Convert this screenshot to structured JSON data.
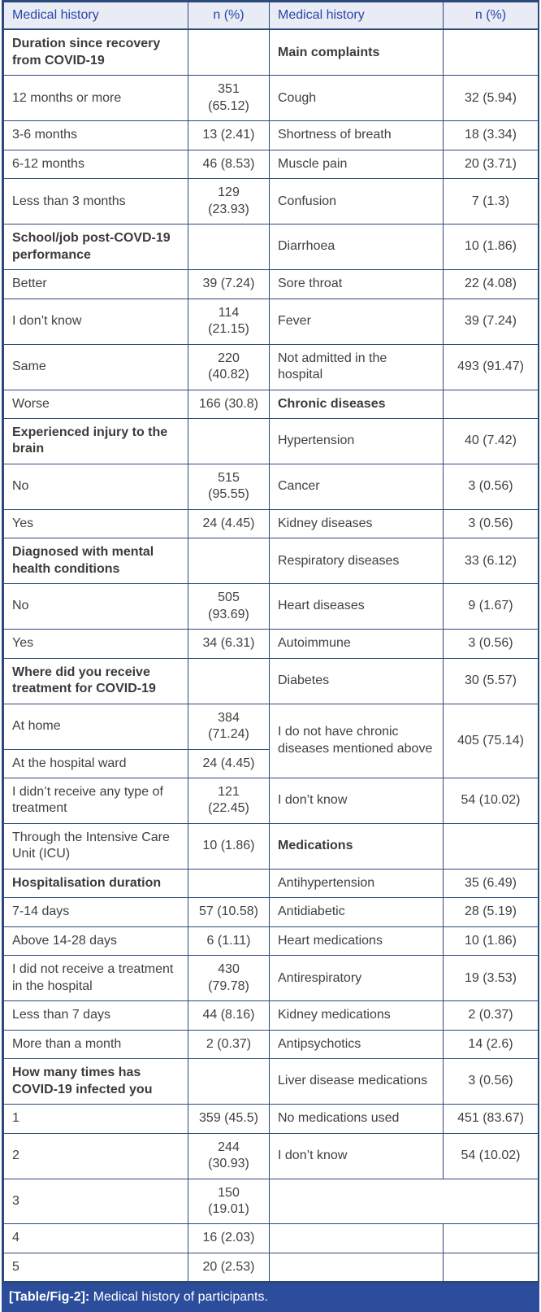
{
  "colors": {
    "border": "#2b4a7b",
    "header_bg": "#e9ebf5",
    "header_text": "#2847a8",
    "caption_bg": "#2b4d9c",
    "body_text": "#414042"
  },
  "caption": {
    "label": "[Table/Fig-2]:",
    "text": " Medical history of participants."
  },
  "table": {
    "columns": [
      {
        "label": "Medical history"
      },
      {
        "label": "n (%)"
      },
      {
        "label": "Medical history"
      },
      {
        "label": "n (%)"
      }
    ],
    "rows": [
      {
        "cells": [
          {
            "text": "Duration since recovery from COVID-19",
            "bold": true
          },
          {
            "text": ""
          },
          {
            "text": "Main complaints",
            "bold": true
          },
          {
            "text": ""
          }
        ]
      },
      {
        "cells": [
          {
            "text": "12 months or more"
          },
          {
            "text": "351 (65.12)"
          },
          {
            "text": "Cough"
          },
          {
            "text": "32 (5.94)"
          }
        ]
      },
      {
        "cells": [
          {
            "text": "3-6 months"
          },
          {
            "text": "13 (2.41)"
          },
          {
            "text": "Shortness of breath"
          },
          {
            "text": "18 (3.34)"
          }
        ]
      },
      {
        "cells": [
          {
            "text": "6-12 months"
          },
          {
            "text": "46 (8.53)"
          },
          {
            "text": "Muscle pain"
          },
          {
            "text": "20 (3.71)"
          }
        ]
      },
      {
        "cells": [
          {
            "text": "Less than 3 months"
          },
          {
            "text": "129 (23.93)"
          },
          {
            "text": "Confusion"
          },
          {
            "text": "7 (1.3)"
          }
        ]
      },
      {
        "cells": [
          {
            "text": "School/job post-COVD-19 performance",
            "bold": true
          },
          {
            "text": ""
          },
          {
            "text": "Diarrhoea"
          },
          {
            "text": "10 (1.86)"
          }
        ]
      },
      {
        "cells": [
          {
            "text": "Better"
          },
          {
            "text": "39 (7.24)"
          },
          {
            "text": "Sore throat"
          },
          {
            "text": "22 (4.08)"
          }
        ]
      },
      {
        "cells": [
          {
            "text": "I don’t know"
          },
          {
            "text": "114 (21.15)"
          },
          {
            "text": "Fever"
          },
          {
            "text": "39 (7.24)"
          }
        ]
      },
      {
        "cells": [
          {
            "text": "Same"
          },
          {
            "text": "220 (40.82)"
          },
          {
            "text": "Not admitted in the hospital"
          },
          {
            "text": "493 (91.47)"
          }
        ]
      },
      {
        "cells": [
          {
            "text": "Worse"
          },
          {
            "text": "166 (30.8)"
          },
          {
            "text": "Chronic diseases",
            "bold": true
          },
          {
            "text": ""
          }
        ]
      },
      {
        "cells": [
          {
            "text": "Experienced injury to the brain",
            "bold": true
          },
          {
            "text": ""
          },
          {
            "text": "Hypertension"
          },
          {
            "text": "40 (7.42)"
          }
        ]
      },
      {
        "cells": [
          {
            "text": "No"
          },
          {
            "text": "515 (95.55)"
          },
          {
            "text": "Cancer"
          },
          {
            "text": "3 (0.56)"
          }
        ]
      },
      {
        "cells": [
          {
            "text": "Yes"
          },
          {
            "text": "24 (4.45)"
          },
          {
            "text": "Kidney diseases"
          },
          {
            "text": "3 (0.56)"
          }
        ]
      },
      {
        "cells": [
          {
            "text": "Diagnosed with mental health conditions",
            "bold": true
          },
          {
            "text": ""
          },
          {
            "text": "Respiratory diseases"
          },
          {
            "text": "33 (6.12)"
          }
        ]
      },
      {
        "cells": [
          {
            "text": "No"
          },
          {
            "text": "505 (93.69)"
          },
          {
            "text": "Heart diseases"
          },
          {
            "text": "9 (1.67)"
          }
        ]
      },
      {
        "cells": [
          {
            "text": "Yes"
          },
          {
            "text": "34 (6.31)"
          },
          {
            "text": "Autoimmune"
          },
          {
            "text": "3 (0.56)"
          }
        ]
      },
      {
        "cells": [
          {
            "text": "Where did you receive treatment for COVID-19",
            "bold": true
          },
          {
            "text": ""
          },
          {
            "text": "Diabetes"
          },
          {
            "text": "30 (5.57)"
          }
        ]
      },
      {
        "cells": [
          {
            "text": "At home"
          },
          {
            "text": "384 (71.24)"
          },
          {
            "text": "I do not have chronic diseases mentioned above",
            "rowspan": 2
          },
          {
            "text": "405 (75.14)",
            "rowspan": 2
          }
        ]
      },
      {
        "cells": [
          {
            "text": "At the hospital ward"
          },
          {
            "text": "24 (4.45)"
          }
        ]
      },
      {
        "cells": [
          {
            "text": "I didn’t receive any type of treatment"
          },
          {
            "text": "121 (22.45)"
          },
          {
            "text": "I don’t know"
          },
          {
            "text": "54 (10.02)"
          }
        ]
      },
      {
        "cells": [
          {
            "text": "Through the Intensive Care Unit (ICU)"
          },
          {
            "text": "10 (1.86)"
          },
          {
            "text": "Medications",
            "bold": true
          },
          {
            "text": ""
          }
        ]
      },
      {
        "cells": [
          {
            "text": "Hospitalisation duration",
            "bold": true
          },
          {
            "text": ""
          },
          {
            "text": "Antihypertension"
          },
          {
            "text": "35 (6.49)"
          }
        ]
      },
      {
        "cells": [
          {
            "text": "7-14 days"
          },
          {
            "text": "57 (10.58)"
          },
          {
            "text": "Antidiabetic"
          },
          {
            "text": "28 (5.19)"
          }
        ]
      },
      {
        "cells": [
          {
            "text": "Above 14-28 days"
          },
          {
            "text": "6 (1.11)"
          },
          {
            "text": "Heart medications"
          },
          {
            "text": "10 (1.86)"
          }
        ]
      },
      {
        "cells": [
          {
            "text": "I did not receive a treatment in the hospital"
          },
          {
            "text": "430 (79.78)"
          },
          {
            "text": "Antirespiratory"
          },
          {
            "text": "19 (3.53)"
          }
        ]
      },
      {
        "cells": [
          {
            "text": "Less than 7 days"
          },
          {
            "text": "44 (8.16)"
          },
          {
            "text": "Kidney medications"
          },
          {
            "text": "2 (0.37)"
          }
        ]
      },
      {
        "cells": [
          {
            "text": "More than a month"
          },
          {
            "text": "2 (0.37)"
          },
          {
            "text": "Antipsychotics"
          },
          {
            "text": "14 (2.6)"
          }
        ]
      },
      {
        "cells": [
          {
            "text": "How many times has COVID-19 infected you",
            "bold": true
          },
          {
            "text": ""
          },
          {
            "text": "Liver disease medications"
          },
          {
            "text": "3 (0.56)"
          }
        ]
      },
      {
        "cells": [
          {
            "text": "1"
          },
          {
            "text": "359 (45.5)"
          },
          {
            "text": "No medications used"
          },
          {
            "text": "451 (83.67)"
          }
        ]
      },
      {
        "cells": [
          {
            "text": "2"
          },
          {
            "text": "244 (30.93)"
          },
          {
            "text": "I don’t know"
          },
          {
            "text": "54 (10.02)"
          }
        ]
      },
      {
        "cells": [
          {
            "text": "3"
          },
          {
            "text": "150 (19.01)"
          },
          {
            "text": "",
            "colspan": 2
          }
        ]
      },
      {
        "cells": [
          {
            "text": "4"
          },
          {
            "text": "16 (2.03)"
          },
          {
            "text": ""
          },
          {
            "text": ""
          }
        ]
      },
      {
        "cells": [
          {
            "text": "5"
          },
          {
            "text": "20 (2.53)"
          },
          {
            "text": ""
          },
          {
            "text": ""
          }
        ]
      }
    ]
  }
}
